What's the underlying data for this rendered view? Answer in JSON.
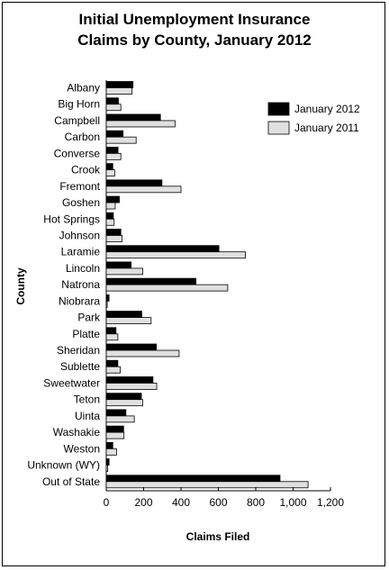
{
  "chart_data": {
    "type": "bar",
    "orientation": "horizontal",
    "title_line1": "Initial Unemployment Insurance",
    "title_line2": "Claims by County, January 2012",
    "xlabel": "Claims Filed",
    "ylabel": "County",
    "xlim": [
      0,
      1200
    ],
    "xticks": [
      0,
      200,
      400,
      600,
      800,
      1000,
      1200
    ],
    "xtick_labels": [
      "0",
      "200",
      "400",
      "600",
      "800",
      "1,000",
      "1,200"
    ],
    "grid": false,
    "legend_position": "top-right",
    "categories": [
      "Albany",
      "Big Horn",
      "Campbell",
      "Carbon",
      "Converse",
      "Crook",
      "Fremont",
      "Goshen",
      "Hot Springs",
      "Johnson",
      "Laramie",
      "Lincoln",
      "Natrona",
      "Niobrara",
      "Park",
      "Platte",
      "Sheridan",
      "Sublette",
      "Sweetwater",
      "Teton",
      "Uinta",
      "Washakie",
      "Weston",
      "Unknown (WY)",
      "Out of State"
    ],
    "series": [
      {
        "name": "January 2012",
        "color": "#000000",
        "values": [
          143,
          65,
          290,
          90,
          63,
          35,
          298,
          70,
          38,
          78,
          603,
          133,
          480,
          15,
          190,
          52,
          268,
          62,
          250,
          188,
          105,
          93,
          35,
          15,
          930
        ]
      },
      {
        "name": "January 2011",
        "color": "#e0e0e0",
        "values": [
          138,
          78,
          368,
          160,
          78,
          45,
          400,
          48,
          42,
          85,
          745,
          195,
          650,
          5,
          240,
          62,
          390,
          75,
          270,
          195,
          150,
          95,
          55,
          8,
          1080
        ]
      }
    ]
  }
}
